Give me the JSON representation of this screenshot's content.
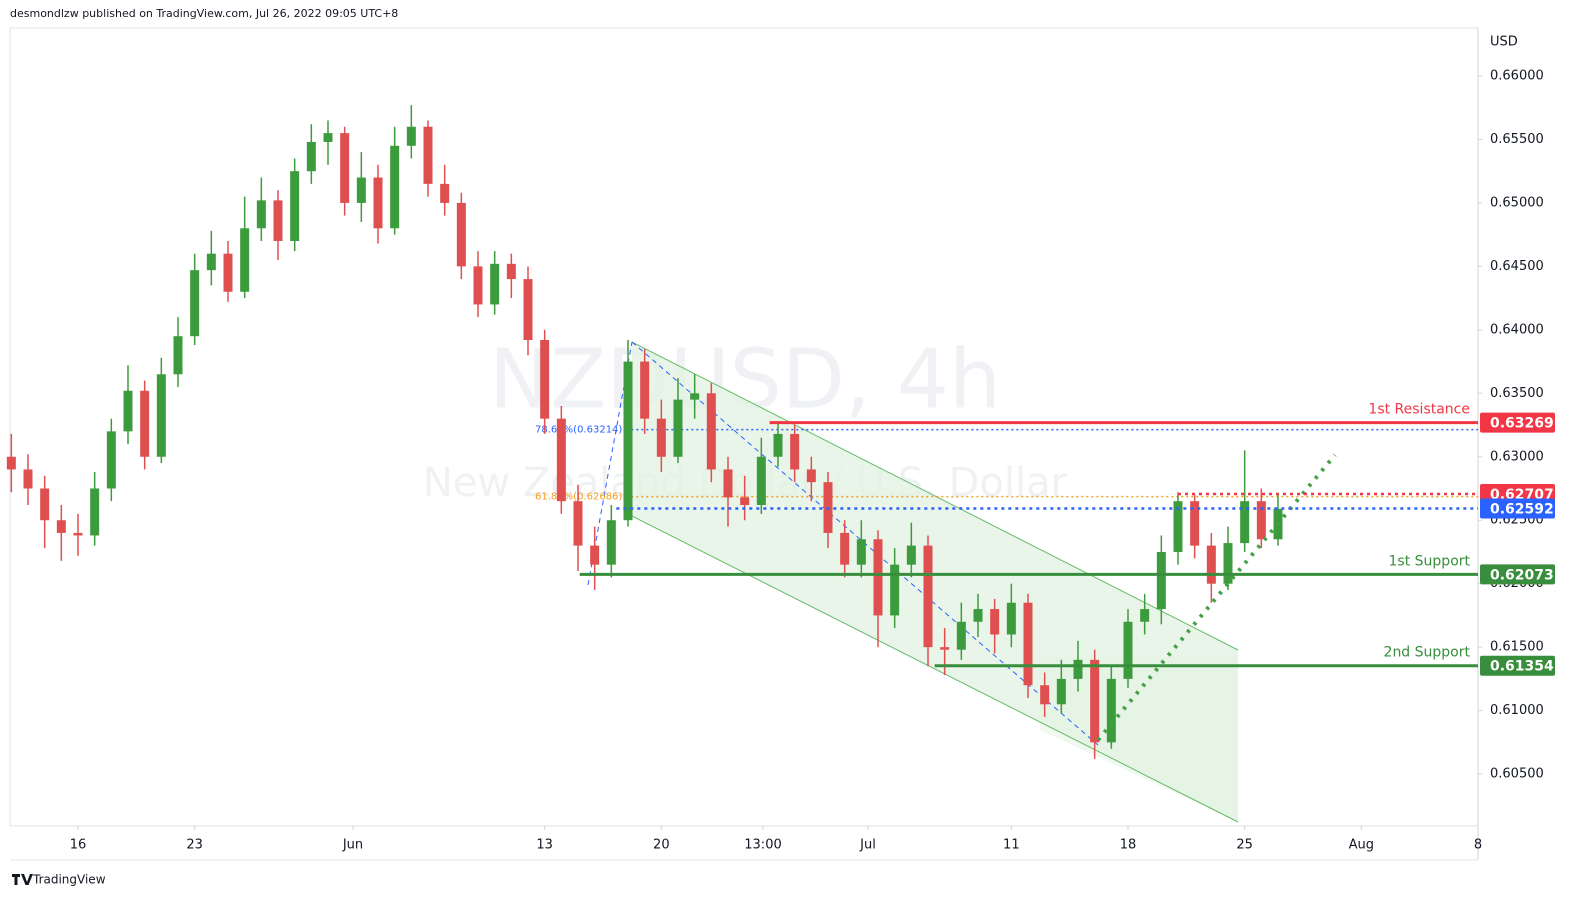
{
  "header": "desmondlzw published on TradingView.com, Jul 26, 2022 09:05 UTC+8",
  "footer": "TradingView",
  "chart_data": {
    "type": "candlestick",
    "title": "NZDUSD, 4h",
    "subtitle": "New Zealand Dollar / U.S. Dollar",
    "currency": "USD",
    "up_color": "#3c9b3c",
    "down_color": "#e04f4f",
    "x": [
      -4,
      -3,
      -2,
      -1,
      0,
      1,
      2,
      3,
      4,
      5,
      6,
      7,
      8,
      9,
      10,
      11,
      12,
      13,
      14,
      15,
      16,
      17,
      18,
      19,
      20,
      21,
      22,
      23,
      24,
      25,
      26,
      27,
      28,
      29,
      30,
      31,
      32,
      33,
      34,
      35,
      36,
      37,
      38,
      39,
      40,
      41,
      42,
      43,
      44,
      45,
      46,
      47,
      48,
      49,
      50,
      51,
      52,
      53,
      54,
      55,
      56,
      57,
      58,
      59,
      60,
      61,
      62,
      63,
      64,
      65,
      66,
      67,
      68,
      69,
      70,
      71,
      72
    ],
    "open": [
      0.63,
      0.629,
      0.6275,
      0.625,
      0.624,
      0.6238,
      0.6275,
      0.632,
      0.6352,
      0.63,
      0.6365,
      0.6395,
      0.6447,
      0.646,
      0.643,
      0.648,
      0.6502,
      0.647,
      0.6525,
      0.6548,
      0.6555,
      0.65,
      0.652,
      0.648,
      0.6545,
      0.656,
      0.6515,
      0.65,
      0.645,
      0.642,
      0.6452,
      0.644,
      0.6392,
      0.633,
      0.6265,
      0.623,
      0.6215,
      0.625,
      0.6375,
      0.633,
      0.63,
      0.6345,
      0.635,
      0.629,
      0.6268,
      0.6262,
      0.63,
      0.6318,
      0.629,
      0.628,
      0.624,
      0.6215,
      0.6235,
      0.6175,
      0.6215,
      0.623,
      0.615,
      0.6148,
      0.617,
      0.618,
      0.616,
      0.6185,
      0.612,
      0.6105,
      0.6125,
      0.614,
      0.6075,
      0.6125,
      0.617,
      0.618,
      0.6225,
      0.6265,
      0.623,
      0.62,
      0.6232,
      0.6265,
      0.6235
    ],
    "high": [
      0.6318,
      0.6302,
      0.6285,
      0.6262,
      0.6255,
      0.6288,
      0.633,
      0.6372,
      0.636,
      0.6378,
      0.641,
      0.646,
      0.6478,
      0.647,
      0.6505,
      0.652,
      0.651,
      0.6535,
      0.6562,
      0.6565,
      0.656,
      0.654,
      0.653,
      0.656,
      0.6577,
      0.6565,
      0.653,
      0.6508,
      0.6462,
      0.6462,
      0.646,
      0.645,
      0.64,
      0.634,
      0.6278,
      0.6245,
      0.6262,
      0.6392,
      0.6385,
      0.6345,
      0.6362,
      0.6365,
      0.6358,
      0.63,
      0.6285,
      0.6315,
      0.6328,
      0.6325,
      0.63,
      0.6288,
      0.625,
      0.625,
      0.6242,
      0.6228,
      0.6248,
      0.6238,
      0.6165,
      0.6185,
      0.6192,
      0.6188,
      0.62,
      0.6192,
      0.613,
      0.614,
      0.6155,
      0.6148,
      0.6135,
      0.618,
      0.6192,
      0.6238,
      0.6272,
      0.627,
      0.624,
      0.6245,
      0.6305,
      0.6275,
      0.627
    ],
    "low": [
      0.6272,
      0.6262,
      0.6228,
      0.6218,
      0.6222,
      0.623,
      0.6265,
      0.631,
      0.629,
      0.6295,
      0.6355,
      0.6388,
      0.6435,
      0.6422,
      0.6425,
      0.647,
      0.6455,
      0.6462,
      0.6515,
      0.653,
      0.649,
      0.6485,
      0.6468,
      0.6475,
      0.6535,
      0.6505,
      0.649,
      0.644,
      0.641,
      0.6412,
      0.6425,
      0.638,
      0.6318,
      0.6255,
      0.621,
      0.6195,
      0.6205,
      0.6245,
      0.6318,
      0.6288,
      0.6295,
      0.633,
      0.628,
      0.6245,
      0.625,
      0.6255,
      0.6292,
      0.628,
      0.6265,
      0.6228,
      0.6205,
      0.6205,
      0.615,
      0.6165,
      0.6205,
      0.6135,
      0.6128,
      0.614,
      0.6158,
      0.6145,
      0.615,
      0.611,
      0.6095,
      0.6098,
      0.6115,
      0.6062,
      0.607,
      0.6118,
      0.616,
      0.6168,
      0.6215,
      0.622,
      0.6185,
      0.6195,
      0.6225,
      0.6228,
      0.623
    ],
    "close": [
      0.629,
      0.6275,
      0.625,
      0.624,
      0.6238,
      0.6275,
      0.632,
      0.6352,
      0.63,
      0.6365,
      0.6395,
      0.6447,
      0.646,
      0.643,
      0.648,
      0.6502,
      0.647,
      0.6525,
      0.6548,
      0.6555,
      0.65,
      0.652,
      0.648,
      0.6545,
      0.656,
      0.6515,
      0.65,
      0.645,
      0.642,
      0.6452,
      0.644,
      0.6392,
      0.633,
      0.6265,
      0.623,
      0.6215,
      0.625,
      0.6375,
      0.633,
      0.63,
      0.6345,
      0.635,
      0.629,
      0.6268,
      0.6262,
      0.63,
      0.6318,
      0.629,
      0.628,
      0.624,
      0.6215,
      0.6235,
      0.6175,
      0.6215,
      0.623,
      0.615,
      0.6148,
      0.617,
      0.618,
      0.616,
      0.6185,
      0.612,
      0.6105,
      0.6125,
      0.614,
      0.6075,
      0.6125,
      0.617,
      0.618,
      0.6225,
      0.6265,
      0.623,
      0.62,
      0.6232,
      0.6265,
      0.6235,
      0.6259
    ],
    "xlim": [
      -4.08,
      84
    ],
    "xticks": [
      {
        "value": 0,
        "label": "16"
      },
      {
        "value": 7,
        "label": "23"
      },
      {
        "value": 16.5,
        "label": "Jun"
      },
      {
        "value": 28,
        "label": "13"
      },
      {
        "value": 35,
        "label": "20"
      },
      {
        "value": 41.1,
        "label": "13:00"
      },
      {
        "value": 47.4,
        "label": "Jul"
      },
      {
        "value": 56,
        "label": "11"
      },
      {
        "value": 63,
        "label": "18"
      },
      {
        "value": 70,
        "label": "25"
      },
      {
        "value": 77,
        "label": "Aug"
      },
      {
        "value": 84,
        "label": "8"
      }
    ],
    "ylim": [
      0.60091,
      0.66378
    ],
    "yticks": [
      {
        "value": 0.605,
        "label": "0.60500"
      },
      {
        "value": 0.61,
        "label": "0.61000"
      },
      {
        "value": 0.615,
        "label": "0.61500"
      },
      {
        "value": 0.62,
        "label": "0.62000"
      },
      {
        "value": 0.625,
        "label": "0.62500"
      },
      {
        "value": 0.63,
        "label": "0.63000"
      },
      {
        "value": 0.635,
        "label": "0.63500"
      },
      {
        "value": 0.64,
        "label": "0.64000"
      },
      {
        "value": 0.645,
        "label": "0.64500"
      },
      {
        "value": 0.65,
        "label": "0.65000"
      },
      {
        "value": 0.655,
        "label": "0.65500"
      },
      {
        "value": 0.66,
        "label": "0.66000"
      }
    ],
    "levels": [
      {
        "name": "1st Resistance",
        "value": 0.63269,
        "color": "#f23645",
        "from": 41.5,
        "style": "solid"
      },
      {
        "value": 0.62707,
        "color": "#f23645",
        "from": 66,
        "style": "dotted"
      },
      {
        "value": 0.62592,
        "color": "#2962ff",
        "from": 32.3,
        "style": "dotted"
      },
      {
        "name": "1st Support",
        "value": 0.62073,
        "color": "#388e3c",
        "from": 30.1,
        "style": "solid"
      },
      {
        "name": "2nd Support",
        "value": 0.61354,
        "color": "#388e3c",
        "from": 51.4,
        "style": "solid"
      }
    ],
    "fib": [
      {
        "label": "78.60%(0.63214)",
        "value": 0.63214,
        "color": "#2962ff",
        "from": 32.9
      },
      {
        "label": "61.80%(0.62686)",
        "value": 0.62686,
        "color": "#f59d1e",
        "from": 32.9
      }
    ]
  }
}
